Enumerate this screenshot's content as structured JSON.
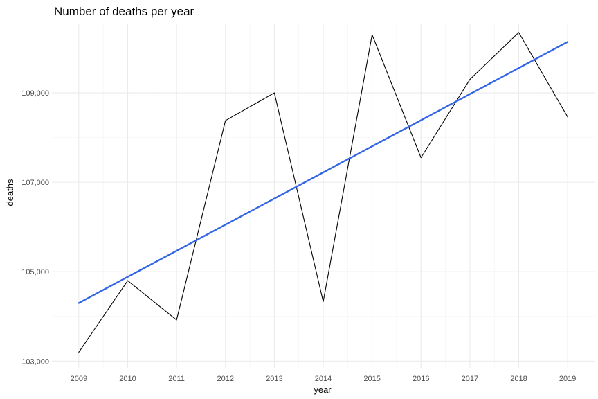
{
  "chart_data": {
    "type": "line",
    "title": "Number of deaths per year",
    "xlabel": "year",
    "ylabel": "deaths",
    "x": [
      2009,
      2010,
      2011,
      2012,
      2013,
      2014,
      2015,
      2016,
      2017,
      2018,
      2019
    ],
    "x_tick_labels": [
      "2009",
      "2010",
      "2011",
      "2012",
      "2013",
      "2014",
      "2015",
      "2016",
      "2017",
      "2018",
      "2019"
    ],
    "y_ticks": [
      103000,
      105000,
      107000,
      109000
    ],
    "y_tick_labels": [
      "103,000",
      "105,000",
      "107,000",
      "109,000"
    ],
    "xlim": [
      2008.45,
      2019.55
    ],
    "ylim": [
      102850,
      110550
    ],
    "grid": true,
    "series": [
      {
        "values": [
          103200,
          104800,
          103920,
          108380,
          109000,
          104330,
          110300,
          107550,
          109300,
          110350,
          108460
        ],
        "color": "#000000"
      },
      {
        "values": [
          104300,
          104884,
          105468,
          106052,
          106636,
          107220,
          107804,
          108388,
          108972,
          109556,
          110140
        ],
        "color": "#3366e6",
        "style": "trend"
      }
    ]
  }
}
